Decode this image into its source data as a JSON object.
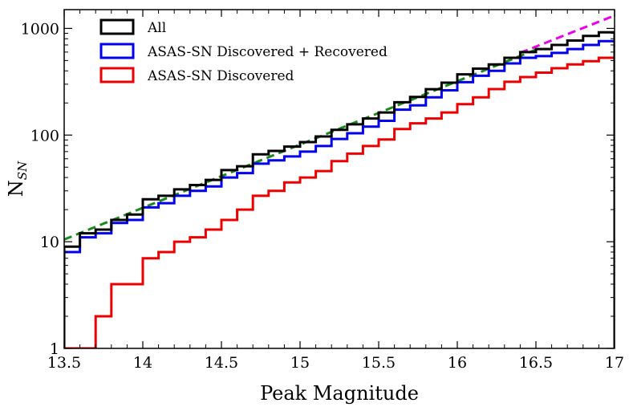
{
  "chart_data": {
    "type": "step",
    "title": "",
    "xlabel": "Peak Magnitude",
    "ylabel": {
      "main": "N",
      "sub": "SN"
    },
    "x_scale": "linear",
    "y_scale": "log",
    "xlim": [
      13.5,
      17
    ],
    "ylim": [
      1,
      1500
    ],
    "xticks": [
      13.5,
      14,
      14.5,
      15,
      15.5,
      16,
      16.5,
      17
    ],
    "xtick_labels": [
      "13.5",
      "14",
      "14.5",
      "15",
      "15.5",
      "16",
      "16.5",
      "17"
    ],
    "yticks": [
      1,
      10,
      100,
      1000
    ],
    "ytick_labels": [
      "1",
      "10",
      "100",
      "1000"
    ],
    "legend_position": "top-left",
    "bin_edges": [
      13.5,
      13.6,
      13.7,
      13.8,
      13.9,
      14.0,
      14.1,
      14.2,
      14.3,
      14.4,
      14.5,
      14.6,
      14.7,
      14.8,
      14.9,
      15.0,
      15.1,
      15.2,
      15.3,
      15.4,
      15.5,
      15.6,
      15.7,
      15.8,
      15.9,
      16.0,
      16.1,
      16.2,
      16.3,
      16.4,
      16.5,
      16.6,
      16.7,
      16.8,
      16.9,
      17.0
    ],
    "series": [
      {
        "name": "All",
        "color": "#000000",
        "values": [
          9,
          12,
          13,
          16,
          18,
          25,
          27,
          31,
          34,
          38,
          47,
          51,
          66,
          71,
          78,
          86,
          97,
          112,
          126,
          143,
          163,
          203,
          228,
          269,
          310,
          371,
          420,
          460,
          530,
          600,
          640,
          700,
          770,
          850,
          920
        ]
      },
      {
        "name": "ASAS-SN Discovered + Recovered",
        "color": "#0000ee",
        "values": [
          8,
          11,
          12,
          15,
          16,
          21,
          23,
          27,
          30,
          33,
          40,
          44,
          54,
          58,
          63,
          70,
          79,
          92,
          104,
          120,
          136,
          173,
          190,
          226,
          263,
          313,
          360,
          400,
          470,
          530,
          550,
          590,
          640,
          700,
          760
        ]
      },
      {
        "name": "ASAS-SN Discovered",
        "color": "#ee0000",
        "values": [
          1,
          1,
          2,
          4,
          4,
          7,
          8,
          10,
          11,
          13,
          16,
          20,
          27,
          30,
          36,
          40,
          46,
          57,
          67,
          79,
          91,
          114,
          129,
          143,
          163,
          195,
          226,
          270,
          316,
          350,
          385,
          423,
          460,
          493,
          530
        ]
      }
    ],
    "fits": [
      {
        "name": "fit-green",
        "style": "dashed",
        "color": "#1a8a1a",
        "x": [
          13.5,
          16.52
        ],
        "y": [
          10.5,
          650
        ]
      },
      {
        "name": "fit-magenta",
        "style": "dashed",
        "color": "#ee00ee",
        "x": [
          16.4,
          17.0
        ],
        "y": [
          590,
          1320
        ]
      }
    ]
  }
}
